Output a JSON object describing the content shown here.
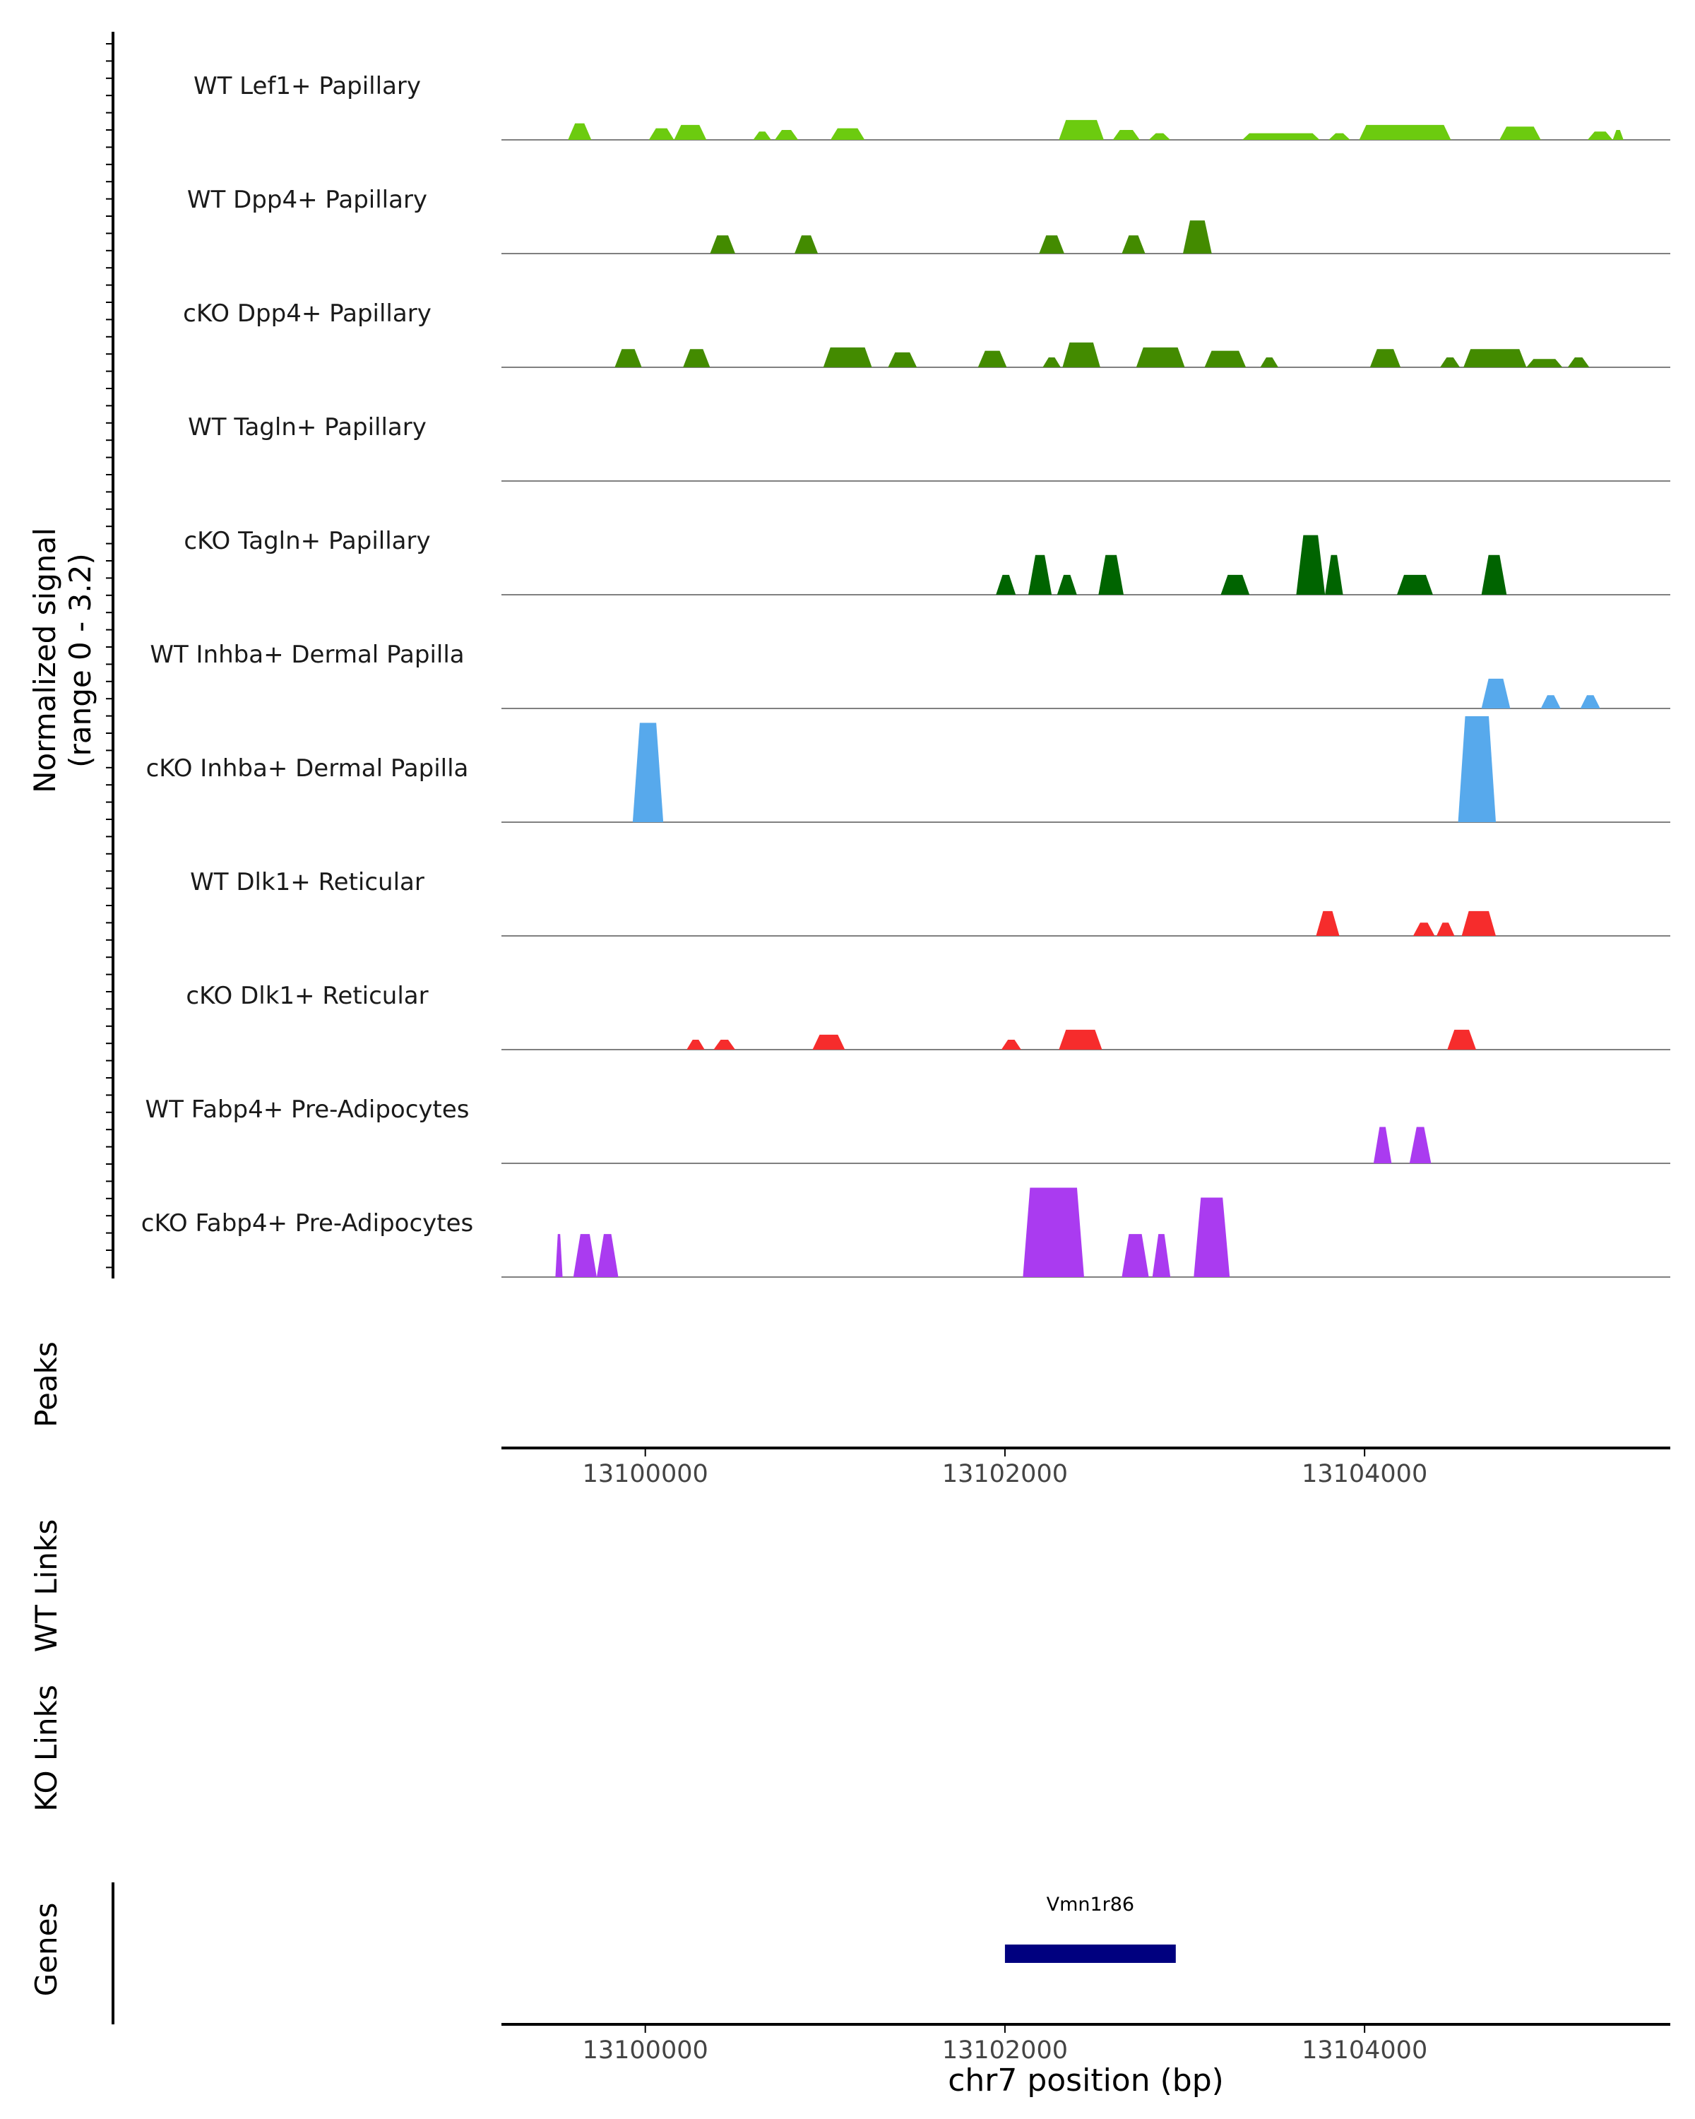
{
  "chart_data": {
    "type": "area",
    "title": "",
    "x_range": [
      13099200,
      13105700
    ],
    "y_range": [
      0,
      3.2
    ],
    "colors": {
      "lef1": "#6ccb0f",
      "papillary": "#438b00",
      "tagln": "#006400",
      "dp": "#57a9ec",
      "reticular": "#f62c2c",
      "adipo": "#aa3bf0",
      "gene": "#00007f",
      "axis": "#000000",
      "baseline": "#808080",
      "tick_label": "#444444"
    },
    "coverage": {
      "ylabel_line1": "Normalized signal",
      "ylabel_line2": "(range 0 - 3.2)",
      "tracks": [
        {
          "name": "WT Lef1+ Papillary",
          "color_key": "lef1",
          "peaks": [
            {
              "start": 13099570,
              "end": 13099700,
              "y": 0.5
            },
            {
              "start": 13100020,
              "end": 13100160,
              "y": 0.35
            },
            {
              "start": 13100160,
              "end": 13100340,
              "y": 0.45
            },
            {
              "start": 13100600,
              "end": 13100700,
              "y": 0.25
            },
            {
              "start": 13100720,
              "end": 13100850,
              "y": 0.3
            },
            {
              "start": 13101030,
              "end": 13101220,
              "y": 0.35
            },
            {
              "start": 13102300,
              "end": 13102550,
              "y": 0.6
            },
            {
              "start": 13102600,
              "end": 13102750,
              "y": 0.3
            },
            {
              "start": 13102800,
              "end": 13102920,
              "y": 0.2
            },
            {
              "start": 13103320,
              "end": 13103750,
              "y": 0.2
            },
            {
              "start": 13103800,
              "end": 13103920,
              "y": 0.2
            },
            {
              "start": 13103970,
              "end": 13104480,
              "y": 0.45
            },
            {
              "start": 13104750,
              "end": 13104980,
              "y": 0.4
            },
            {
              "start": 13105240,
              "end": 13105380,
              "y": 0.25
            },
            {
              "start": 13105380,
              "end": 13105440,
              "y": 0.3
            }
          ]
        },
        {
          "name": "WT Dpp4+ Papillary",
          "color_key": "papillary",
          "peaks": [
            {
              "start": 13100360,
              "end": 13100500,
              "y": 0.55
            },
            {
              "start": 13100830,
              "end": 13100960,
              "y": 0.55
            },
            {
              "start": 13102190,
              "end": 13102330,
              "y": 0.55
            },
            {
              "start": 13102650,
              "end": 13102780,
              "y": 0.55
            },
            {
              "start": 13102990,
              "end": 13103150,
              "y": 1.0
            }
          ]
        },
        {
          "name": "cKO Dpp4+ Papillary",
          "color_key": "papillary",
          "peaks": [
            {
              "start": 13099830,
              "end": 13099980,
              "y": 0.55
            },
            {
              "start": 13100210,
              "end": 13100360,
              "y": 0.55
            },
            {
              "start": 13100990,
              "end": 13101260,
              "y": 0.6
            },
            {
              "start": 13101350,
              "end": 13101510,
              "y": 0.45
            },
            {
              "start": 13101850,
              "end": 13102010,
              "y": 0.5
            },
            {
              "start": 13102210,
              "end": 13102310,
              "y": 0.3
            },
            {
              "start": 13102320,
              "end": 13102530,
              "y": 0.75
            },
            {
              "start": 13102730,
              "end": 13103000,
              "y": 0.6
            },
            {
              "start": 13103110,
              "end": 13103340,
              "y": 0.5
            },
            {
              "start": 13103420,
              "end": 13103520,
              "y": 0.3
            },
            {
              "start": 13104030,
              "end": 13104200,
              "y": 0.55
            },
            {
              "start": 13104420,
              "end": 13104530,
              "y": 0.3
            },
            {
              "start": 13104550,
              "end": 13104900,
              "y": 0.55
            },
            {
              "start": 13104900,
              "end": 13105100,
              "y": 0.25
            },
            {
              "start": 13105130,
              "end": 13105250,
              "y": 0.3
            }
          ]
        },
        {
          "name": "WT Tagln+ Papillary",
          "color_key": "tagln",
          "peaks": []
        },
        {
          "name": "cKO Tagln+ Papillary",
          "color_key": "tagln",
          "peaks": [
            {
              "start": 13101950,
              "end": 13102060,
              "y": 0.6
            },
            {
              "start": 13102130,
              "end": 13102260,
              "y": 1.2
            },
            {
              "start": 13102290,
              "end": 13102400,
              "y": 0.6
            },
            {
              "start": 13102520,
              "end": 13102660,
              "y": 1.2
            },
            {
              "start": 13103200,
              "end": 13103360,
              "y": 0.6
            },
            {
              "start": 13103620,
              "end": 13103780,
              "y": 1.8
            },
            {
              "start": 13103780,
              "end": 13103880,
              "y": 1.2
            },
            {
              "start": 13104180,
              "end": 13104380,
              "y": 0.6
            },
            {
              "start": 13104650,
              "end": 13104790,
              "y": 1.2
            }
          ]
        },
        {
          "name": "WT Inhba+ Dermal Papilla",
          "color_key": "dp",
          "peaks": [
            {
              "start": 13104650,
              "end": 13104810,
              "y": 0.9
            },
            {
              "start": 13104980,
              "end": 13105090,
              "y": 0.4
            },
            {
              "start": 13105200,
              "end": 13105310,
              "y": 0.4
            }
          ]
        },
        {
          "name": "cKO Inhba+ Dermal Papilla",
          "color_key": "dp",
          "peaks": [
            {
              "start": 13099930,
              "end": 13100100,
              "y": 3.0
            },
            {
              "start": 13104520,
              "end": 13104730,
              "y": 3.2
            }
          ]
        },
        {
          "name": "WT Dlk1+ Reticular",
          "color_key": "reticular",
          "peaks": [
            {
              "start": 13103730,
              "end": 13103860,
              "y": 0.75
            },
            {
              "start": 13104270,
              "end": 13104390,
              "y": 0.4
            },
            {
              "start": 13104400,
              "end": 13104500,
              "y": 0.4
            },
            {
              "start": 13104540,
              "end": 13104730,
              "y": 0.75
            }
          ]
        },
        {
          "name": "cKO Dlk1+ Reticular",
          "color_key": "reticular",
          "peaks": [
            {
              "start": 13100230,
              "end": 13100330,
              "y": 0.3
            },
            {
              "start": 13100380,
              "end": 13100500,
              "y": 0.3
            },
            {
              "start": 13100930,
              "end": 13101110,
              "y": 0.45
            },
            {
              "start": 13101980,
              "end": 13102090,
              "y": 0.3
            },
            {
              "start": 13102300,
              "end": 13102540,
              "y": 0.6
            },
            {
              "start": 13104460,
              "end": 13104620,
              "y": 0.6
            }
          ]
        },
        {
          "name": "WT Fabp4+ Pre-Adipocytes",
          "color_key": "adipo",
          "peaks": [
            {
              "start": 13104050,
              "end": 13104150,
              "y": 1.1
            },
            {
              "start": 13104250,
              "end": 13104370,
              "y": 1.1
            }
          ]
        },
        {
          "name": "cKO Fabp4+ Pre-Adipocytes",
          "color_key": "adipo",
          "peaks": [
            {
              "start": 13099500,
              "end": 13099540,
              "y": 1.3
            },
            {
              "start": 13099600,
              "end": 13099730,
              "y": 1.3
            },
            {
              "start": 13099730,
              "end": 13099850,
              "y": 1.3
            },
            {
              "start": 13102100,
              "end": 13102440,
              "y": 2.7
            },
            {
              "start": 13102650,
              "end": 13102800,
              "y": 1.3
            },
            {
              "start": 13102820,
              "end": 13102920,
              "y": 1.3
            },
            {
              "start": 13103050,
              "end": 13103250,
              "y": 2.4
            }
          ]
        }
      ]
    },
    "panels": {
      "peaks_label": "Peaks",
      "wt_links_label": "WT Links",
      "ko_links_label": "KO Links",
      "genes_label": "Genes"
    },
    "x_axis": {
      "ticks": [
        13100000,
        13102000,
        13104000
      ],
      "tick_labels": [
        "13100000",
        "13102000",
        "13104000"
      ],
      "xlabel": "chr7 position (bp)"
    },
    "genes": [
      {
        "name": "Vmn1r86",
        "start": 13102000,
        "end": 13102950
      }
    ]
  }
}
